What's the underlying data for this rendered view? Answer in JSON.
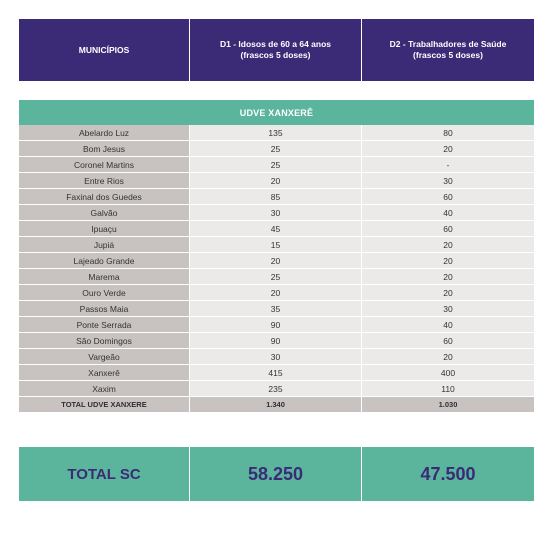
{
  "header": {
    "col1": "MUNICÍPIOS",
    "col2_line1": "D1 - Idosos de 60 a 64 anos",
    "col2_line2": "(frascos 5 doses)",
    "col3_line1": "D2 - Trabalhadores de Saúde",
    "col3_line2": "(frascos 5 doses)"
  },
  "section": {
    "title": "UDVE XANXERÊ"
  },
  "rows": [
    {
      "name": "Abelardo Luz",
      "d1": "135",
      "d2": "80"
    },
    {
      "name": "Bom Jesus",
      "d1": "25",
      "d2": "20"
    },
    {
      "name": "Coronel Martins",
      "d1": "25",
      "d2": "-"
    },
    {
      "name": "Entre Rios",
      "d1": "20",
      "d2": "30"
    },
    {
      "name": "Faxinal dos Guedes",
      "d1": "85",
      "d2": "60"
    },
    {
      "name": "Galvão",
      "d1": "30",
      "d2": "40"
    },
    {
      "name": "Ipuaçu",
      "d1": "45",
      "d2": "60"
    },
    {
      "name": "Jupiá",
      "d1": "15",
      "d2": "20"
    },
    {
      "name": "Lajeado Grande",
      "d1": "20",
      "d2": "20"
    },
    {
      "name": "Marema",
      "d1": "25",
      "d2": "20"
    },
    {
      "name": "Ouro Verde",
      "d1": "20",
      "d2": "20"
    },
    {
      "name": "Passos Maia",
      "d1": "35",
      "d2": "30"
    },
    {
      "name": "Ponte Serrada",
      "d1": "90",
      "d2": "40"
    },
    {
      "name": "São Domingos",
      "d1": "90",
      "d2": "60"
    },
    {
      "name": "Vargeão",
      "d1": "30",
      "d2": "20"
    },
    {
      "name": "Xanxerê",
      "d1": "415",
      "d2": "400"
    },
    {
      "name": "Xaxim",
      "d1": "235",
      "d2": "110"
    }
  ],
  "total_row": {
    "name": "TOTAL UDVE XANXERE",
    "d1": "1.340",
    "d2": "1.030"
  },
  "grand_total": {
    "label": "TOTAL SC",
    "d1": "58.250",
    "d2": "47.500"
  }
}
